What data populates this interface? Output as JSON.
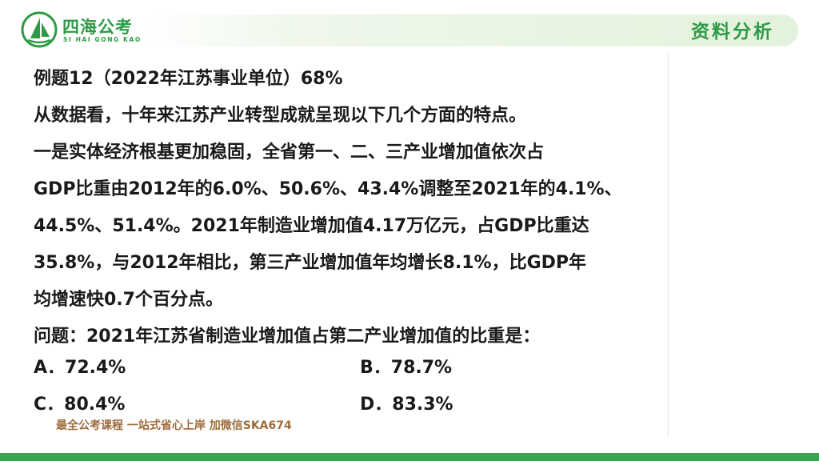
{
  "header": {
    "logo_title": "四海公考",
    "logo_sub": "SI HAI GONG KAO",
    "tag": "资料分析"
  },
  "passage": {
    "heading": "例题12（2022年江苏事业单位）68%",
    "lines": [
      "从数据看，十年来江苏产业转型成就呈现以下几个方面的特点。",
      "一是实体经济根基更加稳固，全省第一、二、三产业增加值依次占",
      "GDP比重由2012年的6.0%、50.6%、43.4%调整至2021年的4.1%、",
      "44.5%、51.4%。2021年制造业增加值4.17万亿元，占GDP比重达",
      "35.8%，与2012年相比，第三产业增加值年均增长8.1%，比GDP年",
      "均增速快0.7个百分点。"
    ]
  },
  "question": "问题：2021年江苏省制造业增加值占第二产业增加值的比重是：",
  "options": {
    "a": "A．72.4%",
    "b": "B．78.7%",
    "c": "C．80.4%",
    "d": "D．83.3%"
  },
  "watermark": "最全公考课程 一站式省心上岸 加微信SKA674",
  "colors": {
    "brand_green": "#2f9a46",
    "footer_green": "#3aa34f",
    "watermark_brown": "#9c6c3c"
  }
}
